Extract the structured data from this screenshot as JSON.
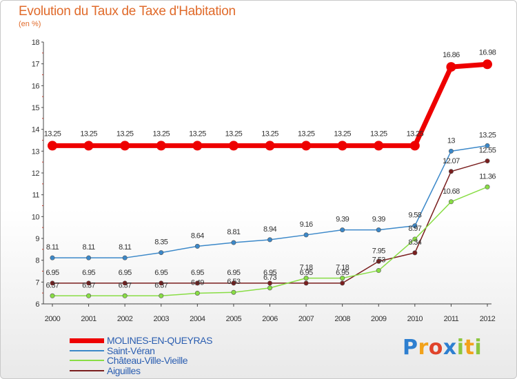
{
  "header": {
    "title": "Evolution du Taux de Taxe d'Habitation",
    "subtitle": "(en %)"
  },
  "chart_data": {
    "type": "line",
    "title": "Evolution du Taux de Taxe d'Habitation",
    "ylabel": "(en %)",
    "xlabel": "",
    "x": [
      "2000",
      "2001",
      "2002",
      "2003",
      "2004",
      "2005",
      "2006",
      "2007",
      "2008",
      "2009",
      "2010",
      "2011",
      "2012"
    ],
    "ylim": [
      6,
      18
    ],
    "yticks": [
      6,
      7,
      8,
      9,
      10,
      11,
      12,
      13,
      14,
      15,
      16,
      17,
      18
    ],
    "grid": false,
    "legend_position": "bottom-left",
    "series": [
      {
        "name": "MOLINES-EN-QUEYRAS",
        "color": "#ee0000",
        "values": [
          13.25,
          13.25,
          13.25,
          13.25,
          13.25,
          13.25,
          13.25,
          13.25,
          13.25,
          13.25,
          13.25,
          16.86,
          16.98
        ],
        "labels": [
          "13.25",
          "13.25",
          "13.25",
          "13.25",
          "13.25",
          "13.25",
          "13.25",
          "13.25",
          "13.25",
          "13.25",
          "13.25",
          "16.86",
          "16.98"
        ]
      },
      {
        "name": "Saint-Véran",
        "color": "#3b88c9",
        "values": [
          8.11,
          8.11,
          8.11,
          8.35,
          8.64,
          8.81,
          8.94,
          9.16,
          9.39,
          9.39,
          9.58,
          13,
          13.25
        ],
        "labels": [
          "8.11",
          "8.11",
          "8.11",
          "8.35",
          "8.64",
          "8.81",
          "8.94",
          "9.16",
          "9.39",
          "9.39",
          "9.58",
          "13",
          "13.25"
        ]
      },
      {
        "name": "Château-Ville-Vieille",
        "color": "#88dd44",
        "values": [
          6.37,
          6.37,
          6.37,
          6.37,
          6.49,
          6.53,
          6.73,
          7.18,
          7.18,
          7.53,
          8.97,
          10.68,
          11.36
        ],
        "labels": [
          "6.37",
          "6.37",
          "6.37",
          "6.37",
          "6.49",
          "6.53",
          "6.73",
          "7.18",
          "7.18",
          "7.53",
          "8.97",
          "10.68",
          "11.36"
        ]
      },
      {
        "name": "Aiguilles",
        "color": "#7a1e1e",
        "values": [
          6.95,
          6.95,
          6.95,
          6.95,
          6.95,
          6.95,
          6.95,
          6.95,
          6.95,
          7.95,
          8.34,
          12.07,
          12.55
        ],
        "labels": [
          "6.95",
          "6.95",
          "6.95",
          "6.95",
          "6.95",
          "6.95",
          "6.95",
          "6.95",
          "6.95",
          "7.95",
          "8.34",
          "12.07",
          "12.55"
        ]
      }
    ]
  },
  "legend": [
    {
      "label": "MOLINES-EN-QUEYRAS",
      "color": "#ee0000",
      "text_color": "#2a5db0"
    },
    {
      "label": "Saint-Véran",
      "color": "#3b88c9",
      "text_color": "#2a5db0"
    },
    {
      "label": "Château-Ville-Vieille",
      "color": "#88dd44",
      "text_color": "#2a5db0"
    },
    {
      "label": "Aiguilles",
      "color": "#7a1e1e",
      "text_color": "#2a5db0"
    }
  ],
  "logo": {
    "letters": [
      "P",
      "r",
      "o",
      "x",
      "i",
      "t",
      "i"
    ],
    "colors": [
      "#2e7fd0",
      "#f2a21b",
      "#e0442c",
      "#2e7fd0",
      "#8cc63f",
      "#f2a21b",
      "#8cc63f"
    ]
  }
}
